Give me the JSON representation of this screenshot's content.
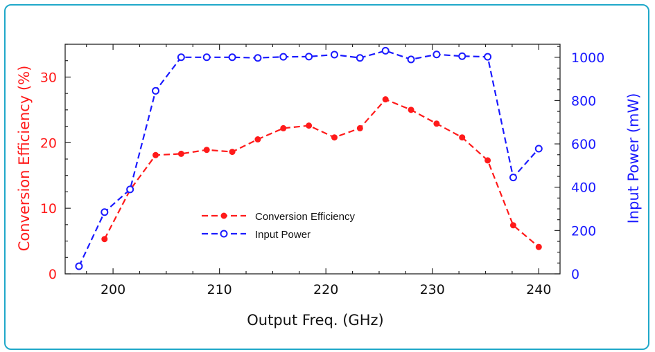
{
  "chart_data": {
    "type": "line",
    "xlabel": "Output Freq. (GHz)",
    "ylabel": "Conversion Efficiency (%)",
    "y2label": "Input Power (mW)",
    "xlim": [
      195.5,
      242
    ],
    "ylim": [
      0,
      35
    ],
    "y2lim": [
      0,
      1060
    ],
    "xticks": [
      200,
      210,
      220,
      230,
      240
    ],
    "yticks": [
      0,
      10,
      20,
      30
    ],
    "y2ticks": [
      0,
      200,
      400,
      600,
      800,
      1000
    ],
    "legend_position": "center",
    "series": [
      {
        "name": "Conversion Efficiency",
        "axis": "left",
        "color": "#ff1a1a",
        "marker": "filled-circle",
        "line": "dashed",
        "x": [
          199.2,
          201.6,
          204.0,
          206.4,
          208.8,
          211.2,
          213.6,
          216.0,
          218.4,
          220.8,
          223.2,
          225.6,
          228.0,
          230.4,
          232.8,
          235.2,
          237.6,
          240.0
        ],
        "values": [
          5.3,
          12.8,
          18.1,
          18.3,
          18.9,
          18.6,
          20.5,
          22.2,
          22.6,
          20.8,
          22.2,
          26.6,
          25.0,
          22.9,
          20.8,
          17.3,
          7.4,
          4.1
        ]
      },
      {
        "name": "Input Power",
        "axis": "right",
        "color": "#1a1aff",
        "marker": "open-circle",
        "line": "dashed",
        "x": [
          196.8,
          199.2,
          201.6,
          204.0,
          206.4,
          208.8,
          211.2,
          213.6,
          216.0,
          218.4,
          220.8,
          223.2,
          225.6,
          228.0,
          230.4,
          232.8,
          235.2,
          237.6,
          240.0
        ],
        "values": [
          35,
          285,
          390,
          845,
          1000,
          1000,
          1000,
          997,
          1002,
          1003,
          1012,
          997,
          1030,
          990,
          1013,
          1005,
          1002,
          445,
          578
        ]
      }
    ]
  }
}
